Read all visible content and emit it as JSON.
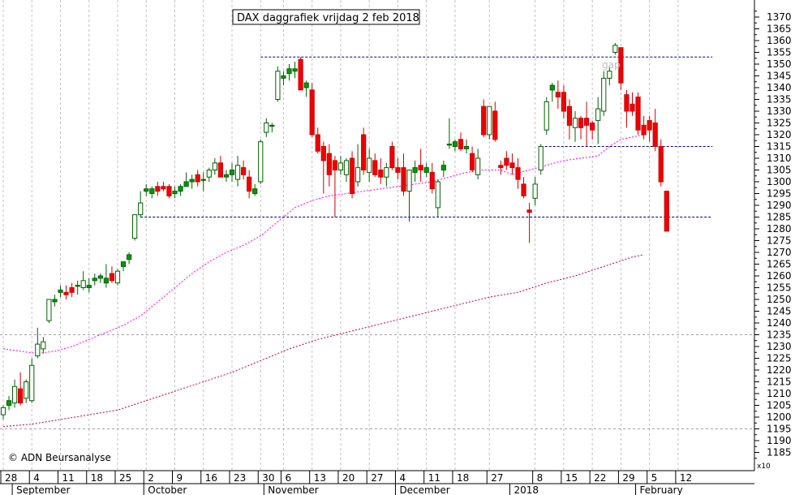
{
  "chart_data": {
    "type": "candlestick",
    "title": "DAX daggrafiek vrijdag 2 feb 2018",
    "copyright": "© ADN Beursanalyse",
    "annotation_gap": "gap",
    "axis_multiplier_label": "x10",
    "ylim": [
      1180,
      1375
    ],
    "y_ticks": [
      1185,
      1190,
      1195,
      1200,
      1205,
      1210,
      1215,
      1220,
      1225,
      1230,
      1235,
      1240,
      1245,
      1250,
      1255,
      1260,
      1265,
      1270,
      1275,
      1280,
      1285,
      1290,
      1295,
      1300,
      1305,
      1310,
      1315,
      1320,
      1325,
      1330,
      1335,
      1340,
      1345,
      1350,
      1355,
      1360,
      1365,
      1370
    ],
    "y_tick_labels": [
      "1185",
      "1190",
      "1195",
      "1200",
      "1205",
      "1210",
      "1215",
      "1220",
      "1225",
      "1230",
      "1235",
      "1240",
      "1245",
      "1250",
      "1255",
      "1260",
      "1265",
      "1270",
      "1275",
      "1280",
      "1285",
      "1290",
      "1295",
      "1300",
      "1305",
      "1310",
      "1315",
      "1320",
      "1325",
      "1330",
      "1335",
      "1340",
      "1345",
      "1350",
      "1355",
      "1360",
      "1365",
      "1370"
    ],
    "x_ticks": [
      {
        "label": "28",
        "i": 0
      },
      {
        "label": "4",
        "i": 5
      },
      {
        "label": "11",
        "i": 10
      },
      {
        "label": "18",
        "i": 15
      },
      {
        "label": "25",
        "i": 20
      },
      {
        "label": "2",
        "i": 25
      },
      {
        "label": "9",
        "i": 30
      },
      {
        "label": "16",
        "i": 35
      },
      {
        "label": "23",
        "i": 40
      },
      {
        "label": "30",
        "i": 45
      },
      {
        "label": "6",
        "i": 49
      },
      {
        "label": "13",
        "i": 54
      },
      {
        "label": "20",
        "i": 59
      },
      {
        "label": "27",
        "i": 64
      },
      {
        "label": "4",
        "i": 69
      },
      {
        "label": "11",
        "i": 74
      },
      {
        "label": "18",
        "i": 79
      },
      {
        "label": "27",
        "i": 85
      },
      {
        "label": "8",
        "i": 93
      },
      {
        "label": "15",
        "i": 98
      },
      {
        "label": "22",
        "i": 103
      },
      {
        "label": "29",
        "i": 108
      },
      {
        "label": "5",
        "i": 113
      },
      {
        "label": "12",
        "i": 118
      }
    ],
    "months": [
      {
        "label": "September",
        "i": 2
      },
      {
        "label": "October",
        "i": 25
      },
      {
        "label": "November",
        "i": 46
      },
      {
        "label": "December",
        "i": 69
      },
      {
        "label": "2018",
        "i": 89
      },
      {
        "label": "February",
        "i": 111
      }
    ],
    "candles": [
      {
        "o": 1201,
        "h": 1205,
        "l": 1199,
        "c": 1204
      },
      {
        "o": 1205,
        "h": 1209,
        "l": 1203,
        "c": 1207
      },
      {
        "o": 1206,
        "h": 1216,
        "l": 1204,
        "c": 1213
      },
      {
        "o": 1212,
        "h": 1219,
        "l": 1205,
        "c": 1206
      },
      {
        "o": 1208,
        "h": 1216,
        "l": 1206,
        "c": 1215
      },
      {
        "o": 1207,
        "h": 1225,
        "l": 1206,
        "c": 1222
      },
      {
        "o": 1226,
        "h": 1238,
        "l": 1225,
        "c": 1231
      },
      {
        "o": 1229,
        "h": 1234,
        "l": 1227,
        "c": 1232
      },
      {
        "o": 1241,
        "h": 1250,
        "l": 1240,
        "c": 1250
      },
      {
        "o": 1249,
        "h": 1252,
        "l": 1247,
        "c": 1250
      },
      {
        "o": 1253,
        "h": 1256,
        "l": 1251,
        "c": 1254
      },
      {
        "o": 1253,
        "h": 1256,
        "l": 1250,
        "c": 1252
      },
      {
        "o": 1255,
        "h": 1257,
        "l": 1251,
        "c": 1253
      },
      {
        "o": 1256,
        "h": 1258,
        "l": 1252,
        "c": 1256
      },
      {
        "o": 1255,
        "h": 1262,
        "l": 1254,
        "c": 1258
      },
      {
        "o": 1255,
        "h": 1259,
        "l": 1253,
        "c": 1256
      },
      {
        "o": 1258,
        "h": 1261,
        "l": 1256,
        "c": 1259
      },
      {
        "o": 1259,
        "h": 1261,
        "l": 1257,
        "c": 1260
      },
      {
        "o": 1257,
        "h": 1265,
        "l": 1255,
        "c": 1259
      },
      {
        "o": 1261,
        "h": 1264,
        "l": 1257,
        "c": 1258
      },
      {
        "o": 1257,
        "h": 1263,
        "l": 1256,
        "c": 1262
      },
      {
        "o": 1264,
        "h": 1266,
        "l": 1262,
        "c": 1266
      },
      {
        "o": 1267,
        "h": 1270,
        "l": 1265,
        "c": 1269
      },
      {
        "o": 1276,
        "h": 1286,
        "l": 1275,
        "c": 1286
      },
      {
        "o": 1286,
        "h": 1296,
        "l": 1285,
        "c": 1291
      },
      {
        "o": 1296,
        "h": 1299,
        "l": 1294,
        "c": 1297
      },
      {
        "o": 1295,
        "h": 1298,
        "l": 1293,
        "c": 1297
      },
      {
        "o": 1298,
        "h": 1300,
        "l": 1294,
        "c": 1296
      },
      {
        "o": 1298,
        "h": 1300,
        "l": 1296,
        "c": 1297
      },
      {
        "o": 1298,
        "h": 1299,
        "l": 1293,
        "c": 1294
      },
      {
        "o": 1295,
        "h": 1298,
        "l": 1293,
        "c": 1296
      },
      {
        "o": 1296,
        "h": 1299,
        "l": 1294,
        "c": 1298
      },
      {
        "o": 1298,
        "h": 1304,
        "l": 1298,
        "c": 1300
      },
      {
        "o": 1300,
        "h": 1303,
        "l": 1297,
        "c": 1301
      },
      {
        "o": 1303,
        "h": 1305,
        "l": 1298,
        "c": 1300
      },
      {
        "o": 1301,
        "h": 1304,
        "l": 1296,
        "c": 1301
      },
      {
        "o": 1302,
        "h": 1306,
        "l": 1300,
        "c": 1305
      },
      {
        "o": 1305,
        "h": 1310,
        "l": 1303,
        "c": 1308
      },
      {
        "o": 1308,
        "h": 1311,
        "l": 1303,
        "c": 1302
      },
      {
        "o": 1302,
        "h": 1305,
        "l": 1300,
        "c": 1303
      },
      {
        "o": 1303,
        "h": 1308,
        "l": 1300,
        "c": 1305
      },
      {
        "o": 1301,
        "h": 1311,
        "l": 1298,
        "c": 1307
      },
      {
        "o": 1306,
        "h": 1309,
        "l": 1301,
        "c": 1303
      },
      {
        "o": 1302,
        "h": 1305,
        "l": 1293,
        "c": 1296
      },
      {
        "o": 1295,
        "h": 1299,
        "l": 1294,
        "c": 1297
      },
      {
        "o": 1300,
        "h": 1318,
        "l": 1299,
        "c": 1317
      },
      {
        "o": 1321,
        "h": 1327,
        "l": 1319,
        "c": 1325
      },
      {
        "o": 1324,
        "h": 1325,
        "l": 1321,
        "c": 1324
      },
      {
        "o": 1335,
        "h": 1349,
        "l": 1334,
        "c": 1347
      },
      {
        "o": 1344,
        "h": 1347,
        "l": 1341,
        "c": 1345
      },
      {
        "o": 1346,
        "h": 1350,
        "l": 1343,
        "c": 1348
      },
      {
        "o": 1347,
        "h": 1351,
        "l": 1344,
        "c": 1348
      },
      {
        "o": 1352,
        "h": 1353,
        "l": 1339,
        "c": 1339
      },
      {
        "o": 1340,
        "h": 1343,
        "l": 1336,
        "c": 1342
      },
      {
        "o": 1339,
        "h": 1342,
        "l": 1319,
        "c": 1320
      },
      {
        "o": 1320,
        "h": 1323,
        "l": 1312,
        "c": 1313
      },
      {
        "o": 1315,
        "h": 1317,
        "l": 1295,
        "c": 1309
      },
      {
        "o": 1312,
        "h": 1316,
        "l": 1298,
        "c": 1303
      },
      {
        "o": 1309,
        "h": 1311,
        "l": 1285,
        "c": 1305
      },
      {
        "o": 1305,
        "h": 1311,
        "l": 1303,
        "c": 1308
      },
      {
        "o": 1303,
        "h": 1310,
        "l": 1300,
        "c": 1309
      },
      {
        "o": 1310,
        "h": 1313,
        "l": 1293,
        "c": 1295
      },
      {
        "o": 1300,
        "h": 1316,
        "l": 1298,
        "c": 1306
      },
      {
        "o": 1320,
        "h": 1323,
        "l": 1303,
        "c": 1305
      },
      {
        "o": 1304,
        "h": 1314,
        "l": 1300,
        "c": 1310
      },
      {
        "o": 1309,
        "h": 1312,
        "l": 1302,
        "c": 1303
      },
      {
        "o": 1305,
        "h": 1310,
        "l": 1299,
        "c": 1302
      },
      {
        "o": 1302,
        "h": 1308,
        "l": 1298,
        "c": 1306
      },
      {
        "o": 1315,
        "h": 1317,
        "l": 1305,
        "c": 1306
      },
      {
        "o": 1306,
        "h": 1310,
        "l": 1301,
        "c": 1304
      },
      {
        "o": 1306,
        "h": 1312,
        "l": 1294,
        "c": 1296
      },
      {
        "o": 1296,
        "h": 1305,
        "l": 1283,
        "c": 1305
      },
      {
        "o": 1304,
        "h": 1309,
        "l": 1300,
        "c": 1306
      },
      {
        "o": 1307,
        "h": 1314,
        "l": 1300,
        "c": 1305
      },
      {
        "o": 1304,
        "h": 1308,
        "l": 1302,
        "c": 1306
      },
      {
        "o": 1304,
        "h": 1308,
        "l": 1295,
        "c": 1297
      },
      {
        "o": 1289,
        "h": 1301,
        "l": 1285,
        "c": 1300
      },
      {
        "o": 1305,
        "h": 1309,
        "l": 1302,
        "c": 1307
      },
      {
        "o": 1316,
        "h": 1327,
        "l": 1314,
        "c": 1316
      },
      {
        "o": 1315,
        "h": 1318,
        "l": 1313,
        "c": 1317
      },
      {
        "o": 1318,
        "h": 1321,
        "l": 1313,
        "c": 1314
      },
      {
        "o": 1314,
        "h": 1318,
        "l": 1312,
        "c": 1315
      },
      {
        "o": 1312,
        "h": 1315,
        "l": 1304,
        "c": 1305
      },
      {
        "o": 1303,
        "h": 1314,
        "l": 1301,
        "c": 1310
      },
      {
        "o": 1332,
        "h": 1335,
        "l": 1319,
        "c": 1320
      },
      {
        "o": 1320,
        "h": 1332,
        "l": 1318,
        "c": 1332
      },
      {
        "o": 1330,
        "h": 1334,
        "l": 1317,
        "c": 1318
      },
      {
        "o": 1307,
        "h": 1309,
        "l": 1303,
        "c": 1306
      },
      {
        "o": 1310,
        "h": 1313,
        "l": 1305,
        "c": 1307
      },
      {
        "o": 1308,
        "h": 1312,
        "l": 1303,
        "c": 1306
      },
      {
        "o": 1306,
        "h": 1310,
        "l": 1297,
        "c": 1301
      },
      {
        "o": 1299,
        "h": 1302,
        "l": 1293,
        "c": 1294
      },
      {
        "o": 1288,
        "h": 1291,
        "l": 1274,
        "c": 1287
      },
      {
        "o": 1293,
        "h": 1302,
        "l": 1290,
        "c": 1299
      },
      {
        "o": 1305,
        "h": 1316,
        "l": 1303,
        "c": 1315
      },
      {
        "o": 1322,
        "h": 1336,
        "l": 1320,
        "c": 1334
      },
      {
        "o": 1339,
        "h": 1342,
        "l": 1334,
        "c": 1341
      },
      {
        "o": 1338,
        "h": 1343,
        "l": 1331,
        "c": 1336
      },
      {
        "o": 1338,
        "h": 1341,
        "l": 1327,
        "c": 1330
      },
      {
        "o": 1332,
        "h": 1335,
        "l": 1318,
        "c": 1324
      },
      {
        "o": 1323,
        "h": 1330,
        "l": 1317,
        "c": 1327
      },
      {
        "o": 1327,
        "h": 1328,
        "l": 1318,
        "c": 1323
      },
      {
        "o": 1327,
        "h": 1334,
        "l": 1315,
        "c": 1324
      },
      {
        "o": 1325,
        "h": 1326,
        "l": 1318,
        "c": 1322
      },
      {
        "o": 1326,
        "h": 1336,
        "l": 1316,
        "c": 1331
      },
      {
        "o": 1330,
        "h": 1347,
        "l": 1328,
        "c": 1344
      },
      {
        "o": 1344,
        "h": 1349,
        "l": 1341,
        "c": 1347
      },
      {
        "o": 1355,
        "h": 1359,
        "l": 1354,
        "c": 1358
      },
      {
        "o": 1357,
        "h": 1357,
        "l": 1339,
        "c": 1342
      },
      {
        "o": 1337,
        "h": 1339,
        "l": 1323,
        "c": 1330
      },
      {
        "o": 1333,
        "h": 1338,
        "l": 1328,
        "c": 1330
      },
      {
        "o": 1336,
        "h": 1338,
        "l": 1320,
        "c": 1322
      },
      {
        "o": 1324,
        "h": 1328,
        "l": 1318,
        "c": 1320
      },
      {
        "o": 1326,
        "h": 1328,
        "l": 1317,
        "c": 1322
      },
      {
        "o": 1325,
        "h": 1331,
        "l": 1313,
        "c": 1315
      },
      {
        "o": 1315,
        "h": 1318,
        "l": 1298,
        "c": 1300
      },
      {
        "o": 1296,
        "h": 1296,
        "l": 1279,
        "c": 1279
      }
    ],
    "ma_short": [
      [
        0,
        1229
      ],
      [
        3,
        1228
      ],
      [
        6,
        1227
      ],
      [
        9,
        1228
      ],
      [
        12,
        1230
      ],
      [
        15,
        1233
      ],
      [
        18,
        1236
      ],
      [
        21,
        1239
      ],
      [
        24,
        1243
      ],
      [
        27,
        1249
      ],
      [
        30,
        1255
      ],
      [
        33,
        1261
      ],
      [
        36,
        1266
      ],
      [
        39,
        1270
      ],
      [
        42,
        1273
      ],
      [
        45,
        1277
      ],
      [
        48,
        1283
      ],
      [
        51,
        1289
      ],
      [
        54,
        1292
      ],
      [
        57,
        1294
      ],
      [
        60,
        1295
      ],
      [
        63,
        1296
      ],
      [
        66,
        1297
      ],
      [
        69,
        1298
      ],
      [
        72,
        1299
      ],
      [
        75,
        1300
      ],
      [
        78,
        1302
      ],
      [
        81,
        1304
      ],
      [
        84,
        1305
      ],
      [
        87,
        1305
      ],
      [
        89,
        1303
      ],
      [
        92,
        1305
      ],
      [
        95,
        1307
      ],
      [
        98,
        1309
      ],
      [
        101,
        1310
      ],
      [
        104,
        1311
      ],
      [
        106,
        1315
      ],
      [
        108,
        1318
      ],
      [
        110,
        1319
      ],
      [
        112,
        1320
      ]
    ],
    "ma_long": [
      [
        0,
        1196
      ],
      [
        5,
        1197
      ],
      [
        10,
        1199
      ],
      [
        15,
        1201
      ],
      [
        20,
        1203
      ],
      [
        25,
        1207
      ],
      [
        30,
        1211
      ],
      [
        35,
        1215
      ],
      [
        40,
        1219
      ],
      [
        45,
        1224
      ],
      [
        50,
        1229
      ],
      [
        55,
        1233
      ],
      [
        60,
        1236
      ],
      [
        65,
        1239
      ],
      [
        70,
        1242
      ],
      [
        75,
        1245
      ],
      [
        80,
        1248
      ],
      [
        85,
        1251
      ],
      [
        90,
        1253
      ],
      [
        95,
        1257
      ],
      [
        100,
        1260
      ],
      [
        105,
        1264
      ],
      [
        110,
        1268
      ],
      [
        112,
        1269
      ]
    ],
    "horizontal_lines": [
      {
        "y": 1353,
        "from": 45,
        "to": 124
      },
      {
        "y": 1315,
        "from": 94,
        "to": 124
      },
      {
        "y": 1285,
        "from": 24,
        "to": 124
      }
    ],
    "horizontal_grid": [
      1195,
      1235
    ]
  }
}
